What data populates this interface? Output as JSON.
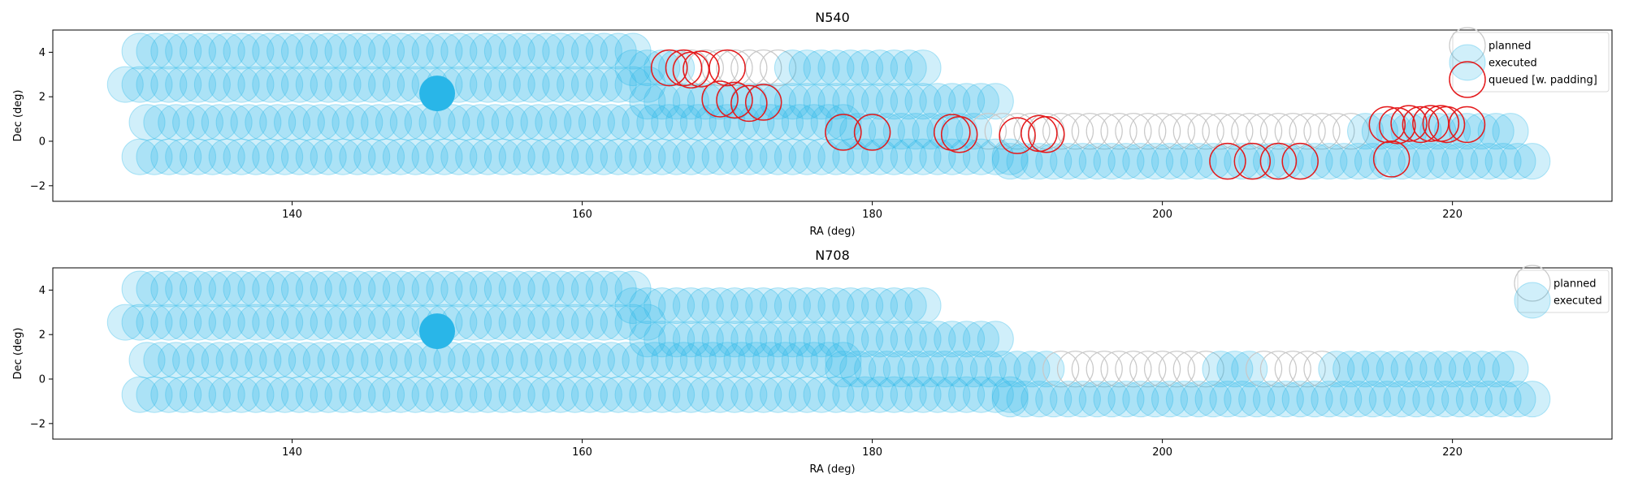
{
  "chart_data": [
    {
      "type": "scatter",
      "title": "N540",
      "xlabel": "RA (deg)",
      "ylabel": "Dec (deg)",
      "xlim": [
        123.5,
        231
      ],
      "ylim": [
        -2.7,
        5.0
      ],
      "xticks": [
        140,
        160,
        180,
        200,
        220
      ],
      "yticks": [
        -2,
        0,
        2,
        4
      ],
      "xtick_labels": [
        "140",
        "160",
        "180",
        "200",
        "220"
      ],
      "ytick_labels": [
        "−2",
        "0",
        "2",
        "4"
      ],
      "legend": {
        "position": "top-right",
        "items": [
          {
            "label": "planned",
            "style": "planned"
          },
          {
            "label": "executed",
            "style": "executed"
          },
          {
            "label": "queued [w. padding]",
            "style": "queued"
          }
        ]
      },
      "rows": [
        {
          "dec": 4.05,
          "ra_start": 129.5,
          "ra_end": 163.5,
          "executed_to": 163.5
        },
        {
          "dec": 3.3,
          "ra_start": 163.5,
          "ra_end": 183.5,
          "executed_to": 166.5,
          "executed_ranges": [
            [
              174.5,
              183.5
            ]
          ]
        },
        {
          "dec": 2.55,
          "ra_start": 128.5,
          "ra_end": 164.5,
          "executed_to": 164.5
        },
        {
          "dec": 1.8,
          "ra_start": 164.5,
          "ra_end": 188.5,
          "executed_to": 188.5
        },
        {
          "dec": 0.85,
          "ra_start": 130.0,
          "ra_end": 178.0,
          "executed_to": 178.0
        },
        {
          "dec": 0.45,
          "ra_start": 178.0,
          "ra_end": 224.5,
          "executed_to": 187.0,
          "executed_ranges": [
            [
              213.5,
              224.5
            ]
          ]
        },
        {
          "dec": -0.7,
          "ra_start": 129.5,
          "ra_end": 189.5,
          "executed_to": 189.5
        },
        {
          "dec": -0.9,
          "ra_start": 189.5,
          "ra_end": 226.0,
          "executed_to": 226.0
        }
      ],
      "highlight": {
        "ra": 150.0,
        "dec": 2.15
      },
      "queued": [
        {
          "ra": 166.0,
          "dec": 3.3
        },
        {
          "ra": 167.0,
          "dec": 3.3
        },
        {
          "ra": 167.5,
          "dec": 3.2
        },
        {
          "ra": 168.2,
          "dec": 3.25
        },
        {
          "ra": 170.0,
          "dec": 3.3
        },
        {
          "ra": 169.5,
          "dec": 1.9
        },
        {
          "ra": 170.5,
          "dec": 1.85
        },
        {
          "ra": 171.5,
          "dec": 1.7
        },
        {
          "ra": 172.5,
          "dec": 1.75
        },
        {
          "ra": 178.0,
          "dec": 0.4
        },
        {
          "ra": 180.0,
          "dec": 0.4
        },
        {
          "ra": 185.5,
          "dec": 0.4
        },
        {
          "ra": 186.0,
          "dec": 0.3
        },
        {
          "ra": 190.0,
          "dec": 0.25
        },
        {
          "ra": 191.5,
          "dec": 0.35
        },
        {
          "ra": 192.0,
          "dec": 0.3
        },
        {
          "ra": 204.5,
          "dec": -0.9
        },
        {
          "ra": 206.2,
          "dec": -0.9
        },
        {
          "ra": 208.0,
          "dec": -0.9
        },
        {
          "ra": 209.5,
          "dec": -0.9
        },
        {
          "ra": 215.5,
          "dec": 0.75
        },
        {
          "ra": 216.2,
          "dec": 0.7
        },
        {
          "ra": 217.0,
          "dec": 0.8
        },
        {
          "ra": 217.8,
          "dec": 0.75
        },
        {
          "ra": 218.5,
          "dec": 0.8
        },
        {
          "ra": 219.2,
          "dec": 0.8
        },
        {
          "ra": 219.6,
          "dec": 0.75
        },
        {
          "ra": 221.0,
          "dec": 0.75
        },
        {
          "ra": 215.8,
          "dec": -0.8
        }
      ]
    },
    {
      "type": "scatter",
      "title": "N708",
      "xlabel": "RA (deg)",
      "ylabel": "Dec (deg)",
      "xlim": [
        123.5,
        231
      ],
      "ylim": [
        -2.7,
        5.0
      ],
      "xticks": [
        140,
        160,
        180,
        200,
        220
      ],
      "yticks": [
        -2,
        0,
        2,
        4
      ],
      "xtick_labels": [
        "140",
        "160",
        "180",
        "200",
        "220"
      ],
      "ytick_labels": [
        "−2",
        "0",
        "2",
        "4"
      ],
      "legend": {
        "position": "top-right",
        "items": [
          {
            "label": "planned",
            "style": "planned"
          },
          {
            "label": "executed",
            "style": "executed"
          }
        ]
      },
      "rows": [
        {
          "dec": 4.05,
          "ra_start": 129.5,
          "ra_end": 163.5,
          "executed_to": 163.5
        },
        {
          "dec": 3.3,
          "ra_start": 163.5,
          "ra_end": 183.5,
          "executed_to": 183.5
        },
        {
          "dec": 2.55,
          "ra_start": 128.5,
          "ra_end": 164.5,
          "executed_to": 164.5
        },
        {
          "dec": 1.8,
          "ra_start": 164.5,
          "ra_end": 188.5,
          "executed_to": 188.5
        },
        {
          "dec": 0.85,
          "ra_start": 130.0,
          "ra_end": 178.0,
          "executed_to": 178.0
        },
        {
          "dec": 0.45,
          "ra_start": 178.0,
          "ra_end": 224.5,
          "executed_to": 192.5,
          "executed_ranges": [
            [
              204.0,
              206.5
            ],
            [
              212.0,
              224.5
            ]
          ]
        },
        {
          "dec": -0.7,
          "ra_start": 129.5,
          "ra_end": 189.5,
          "executed_to": 189.5
        },
        {
          "dec": -0.9,
          "ra_start": 189.5,
          "ra_end": 226.0,
          "executed_to": 226.0
        }
      ],
      "highlight": {
        "ra": 150.0,
        "dec": 2.15
      },
      "queued": []
    }
  ],
  "colors": {
    "executed": "#29b6e8",
    "planned_edge": "#c8c8c8",
    "queued": "#e41a1c",
    "axes": "#000000"
  }
}
